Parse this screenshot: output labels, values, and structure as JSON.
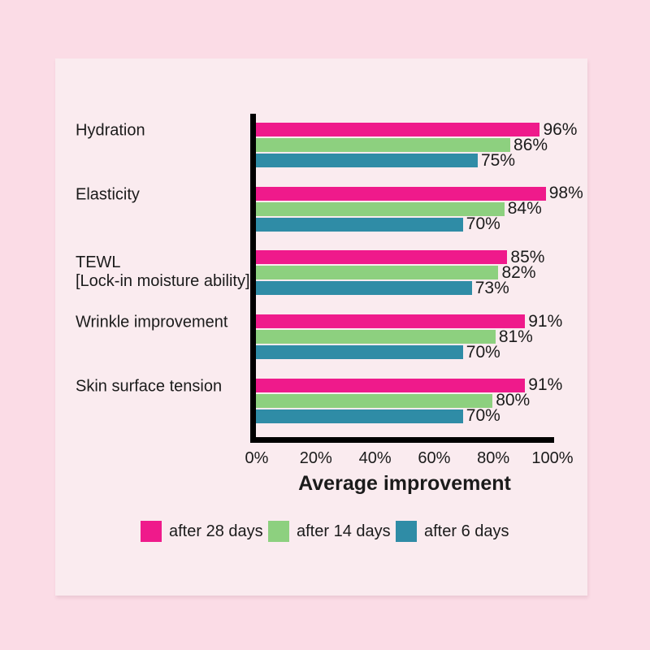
{
  "colors": {
    "page_bg": "#FBDCE6",
    "panel_bg": "#FAEBEF",
    "axis": "#000000",
    "text": "#1B1B1B"
  },
  "chart_data": {
    "type": "bar",
    "orientation": "horizontal",
    "title": "",
    "xlabel": "Average improvement",
    "ylabel": "",
    "xlim": [
      0,
      100
    ],
    "x_ticks": [
      "0%",
      "20%",
      "40%",
      "60%",
      "80%",
      "100%"
    ],
    "grid": false,
    "legend_position": "bottom",
    "value_labels": true,
    "value_suffix": "%",
    "categories": [
      "Hydration",
      "Elasticity",
      "TEWL\n[Lock-in moisture ability]",
      "Wrinkle improvement",
      "Skin surface tension"
    ],
    "series": [
      {
        "name": "after 28 days",
        "color": "#EF1A8B",
        "values": [
          96,
          98,
          85,
          91,
          91
        ]
      },
      {
        "name": "after 14 days",
        "color": "#8DD07F",
        "values": [
          86,
          84,
          82,
          81,
          80
        ]
      },
      {
        "name": "after 6 days",
        "color": "#2F8CA6",
        "values": [
          75,
          70,
          73,
          70,
          70
        ]
      }
    ]
  }
}
